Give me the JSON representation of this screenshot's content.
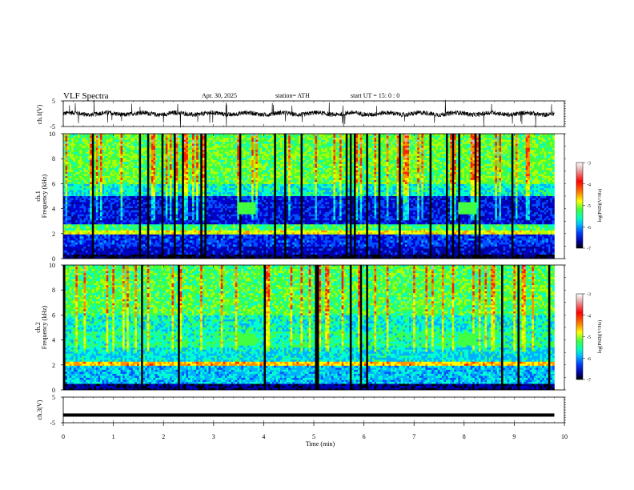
{
  "header": {
    "title": "VLF  Spectra",
    "date": "Apr. 30, 2025",
    "station": "station= ATH",
    "start": "start  UT  =     15: 0   : 0"
  },
  "colors": {
    "colormap": [
      "#ffffff",
      "#e8c0c0",
      "#ff0000",
      "#ff8000",
      "#ffff00",
      "#80ff00",
      "#00ff80",
      "#00e0ff",
      "#0060ff",
      "#0000c0",
      "#000000"
    ],
    "trace": "#000000",
    "axis": "#000000"
  },
  "chart_data": [
    {
      "type": "line",
      "name": "ch1-waveform",
      "ylabel": "ch.1(V)",
      "ylim": [
        -5,
        5
      ],
      "yticks": [
        "5",
        "-5"
      ],
      "x_range_min": [
        0,
        10
      ],
      "baseline_v": 0.0
    },
    {
      "type": "heatmap",
      "name": "ch1-spectrogram",
      "ylabel": "ch.1\nFrequency (kHz)",
      "ylim": [
        0,
        10
      ],
      "yticks": [
        "0",
        "2",
        "4",
        "6",
        "8",
        "10"
      ],
      "x_range_min": [
        0,
        9.8
      ],
      "colorbar": {
        "label": "log(PSD)(V²/Hz)",
        "ticks": [
          "-3",
          "-4",
          "-5",
          "-6",
          "-7"
        ],
        "range": [
          -7,
          -3
        ]
      }
    },
    {
      "type": "heatmap",
      "name": "ch2-spectrogram",
      "ylabel": "ch.2\nFrequency (kHz)",
      "ylim": [
        0,
        10
      ],
      "yticks": [
        "0",
        "2",
        "4",
        "6",
        "8",
        "10"
      ],
      "x_range_min": [
        0,
        9.8
      ],
      "colorbar": {
        "label": "log(PSD)(V²/Hz)",
        "ticks": [
          "-3",
          "-4",
          "-5",
          "-6",
          "-7"
        ],
        "range": [
          -7,
          -3
        ]
      }
    },
    {
      "type": "line",
      "name": "ch3-waveform",
      "ylabel": "ch.3(V)",
      "ylim": [
        -5,
        5
      ],
      "yticks": [
        "5",
        "-5"
      ],
      "x_range_min": [
        0,
        9.8
      ],
      "baseline_v": -2.0
    }
  ],
  "xaxis": {
    "label": "Time  (min)",
    "ticks": [
      "0",
      "1",
      "2",
      "3",
      "4",
      "5",
      "6",
      "7",
      "8",
      "9",
      "10"
    ],
    "range": [
      0,
      10
    ]
  }
}
